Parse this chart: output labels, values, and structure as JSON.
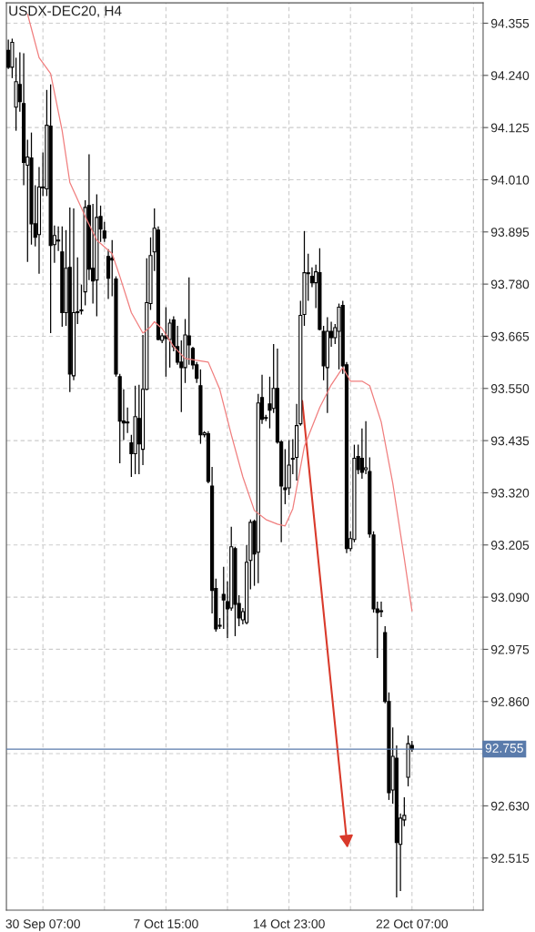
{
  "chart_data": {
    "type": "candlestick",
    "title": "USDX-DEC20, H4",
    "categories": [
      null,
      null,
      null,
      null,
      null,
      null,
      null,
      null,
      null,
      "30 Sep 07:00",
      null,
      null,
      null,
      null,
      null,
      null,
      null,
      null,
      null,
      null,
      null,
      null,
      null,
      null,
      null,
      null,
      null,
      null,
      null,
      null,
      null,
      null,
      null,
      null,
      null,
      null,
      null,
      null,
      null,
      null,
      null,
      "7 Oct 15:00",
      null,
      null,
      null,
      null,
      null,
      null,
      null,
      null,
      null,
      null,
      null,
      null,
      null,
      null,
      null,
      null,
      null,
      null,
      null,
      null,
      null,
      null,
      null,
      null,
      null,
      null,
      null,
      null,
      null,
      null,
      null,
      "14 Oct 23:00",
      null,
      null,
      null,
      null,
      null,
      null,
      null,
      null,
      null,
      null,
      null,
      null,
      null,
      null,
      null,
      null,
      null,
      null,
      null,
      null,
      null,
      null,
      null,
      null,
      null,
      null,
      null,
      null,
      null,
      null,
      null,
      "22 Oct 07:00",
      null,
      null,
      null,
      null,
      null,
      null,
      null,
      null,
      null,
      null,
      null,
      null,
      null,
      null,
      null,
      null,
      null,
      null
    ],
    "ohlc": [
      [
        94.295,
        94.319,
        94.254,
        94.258
      ],
      [
        94.258,
        94.321,
        94.234,
        94.313
      ],
      [
        94.17,
        94.279,
        94.118,
        94.226
      ],
      [
        94.22,
        94.291,
        94.16,
        94.182
      ],
      [
        94.178,
        94.289,
        93.998,
        94.048
      ],
      [
        94.042,
        94.098,
        93.829,
        94.06
      ],
      [
        94.058,
        94.114,
        93.867,
        93.913
      ],
      [
        93.913,
        93.998,
        93.863,
        93.883
      ],
      [
        93.889,
        94.038,
        93.803,
        93.994
      ],
      [
        93.992,
        94.07,
        93.974,
        93.994
      ],
      [
        93.99,
        94.208,
        93.974,
        94.13
      ],
      [
        94.128,
        94.22,
        93.672,
        93.865
      ],
      [
        93.867,
        93.909,
        93.827,
        93.887
      ],
      [
        93.877,
        93.907,
        93.853,
        93.875
      ],
      [
        93.851,
        93.907,
        93.686,
        93.717
      ],
      [
        93.717,
        93.899,
        93.688,
        93.815
      ],
      [
        93.817,
        93.949,
        93.542,
        93.582
      ],
      [
        93.578,
        93.947,
        93.568,
        93.717
      ],
      [
        93.717,
        93.839,
        93.692,
        93.719
      ],
      [
        93.723,
        93.779,
        93.713,
        93.721
      ],
      [
        93.763,
        93.965,
        93.733,
        93.949
      ],
      [
        93.953,
        94.066,
        93.789,
        93.813
      ],
      [
        93.815,
        93.957,
        93.737,
        93.787
      ],
      [
        93.789,
        93.978,
        93.709,
        93.927
      ],
      [
        93.929,
        93.953,
        93.873,
        93.901
      ],
      [
        93.897,
        93.917,
        93.873,
        93.881
      ],
      [
        93.841,
        93.857,
        93.747,
        93.793
      ],
      [
        93.837,
        93.877,
        93.753,
        93.833
      ],
      [
        93.791,
        93.797,
        93.576,
        93.582
      ],
      [
        93.576,
        93.582,
        93.385,
        93.478
      ],
      [
        93.478,
        93.548,
        93.436,
        93.474
      ],
      [
        93.476,
        93.508,
        93.452,
        93.474
      ],
      [
        93.43,
        93.448,
        93.355,
        93.406
      ],
      [
        93.406,
        93.556,
        93.361,
        93.488
      ],
      [
        93.484,
        93.558,
        93.361,
        93.428
      ],
      [
        93.416,
        93.668,
        93.381,
        93.548
      ],
      [
        93.548,
        93.837,
        93.546,
        93.739
      ],
      [
        93.737,
        93.883,
        93.723,
        93.843
      ],
      [
        93.851,
        93.947,
        93.809,
        93.903
      ],
      [
        93.899,
        93.907,
        93.656,
        93.658
      ],
      [
        93.656,
        93.672,
        93.65,
        93.666
      ],
      [
        93.666,
        93.729,
        93.576,
        93.66
      ],
      [
        93.658,
        93.703,
        93.596,
        93.694
      ],
      [
        93.701,
        93.709,
        93.632,
        93.642
      ],
      [
        93.642,
        93.688,
        93.602,
        93.608
      ],
      [
        93.608,
        93.656,
        93.498,
        93.596
      ],
      [
        93.596,
        93.703,
        93.562,
        93.668
      ],
      [
        93.666,
        93.795,
        93.602,
        93.646
      ],
      [
        93.638,
        93.642,
        93.592,
        93.602
      ],
      [
        93.602,
        93.608,
        93.562,
        93.572
      ],
      [
        93.556,
        93.592,
        93.428,
        93.448
      ],
      [
        93.448,
        93.456,
        93.442,
        93.452
      ],
      [
        93.45,
        93.456,
        93.341,
        93.345
      ],
      [
        93.335,
        93.377,
        93.054,
        93.105
      ],
      [
        93.109,
        93.131,
        93.014,
        93.02
      ],
      [
        93.028,
        93.044,
        93.02,
        93.026
      ],
      [
        93.096,
        93.157,
        93.02,
        93.084
      ],
      [
        93.08,
        93.125,
        93.0,
        93.064
      ],
      [
        93.066,
        93.245,
        93.06,
        93.201
      ],
      [
        93.197,
        93.201,
        93.004,
        93.074
      ],
      [
        93.076,
        93.094,
        93.026,
        93.044
      ],
      [
        93.04,
        93.066,
        93.03,
        93.058
      ],
      [
        93.034,
        93.205,
        93.03,
        93.167
      ],
      [
        93.171,
        93.261,
        93.107,
        93.255
      ],
      [
        93.257,
        93.261,
        93.115,
        93.185
      ],
      [
        93.189,
        93.538,
        93.121,
        93.518
      ],
      [
        93.53,
        93.58,
        93.472,
        93.482
      ],
      [
        93.484,
        93.492,
        93.478,
        93.486
      ],
      [
        93.516,
        93.576,
        93.462,
        93.502
      ],
      [
        93.506,
        93.648,
        93.496,
        93.55
      ],
      [
        93.55,
        93.638,
        93.428,
        93.432
      ],
      [
        93.432,
        93.436,
        93.211,
        93.335
      ],
      [
        93.331,
        93.416,
        93.295,
        93.327
      ],
      [
        93.331,
        93.436,
        93.315,
        93.381
      ],
      [
        93.394,
        93.438,
        93.361,
        93.396
      ],
      [
        93.398,
        93.516,
        93.347,
        93.468
      ],
      [
        93.472,
        93.743,
        93.468,
        93.711
      ],
      [
        93.713,
        93.897,
        93.688,
        93.805
      ],
      [
        93.803,
        93.847,
        93.743,
        93.805
      ],
      [
        93.797,
        93.817,
        93.773,
        93.783
      ],
      [
        93.783,
        93.823,
        93.727,
        93.807
      ],
      [
        93.805,
        93.859,
        93.678,
        93.68
      ],
      [
        93.676,
        93.688,
        93.568,
        93.6
      ],
      [
        93.596,
        93.707,
        93.496,
        93.676
      ],
      [
        93.676,
        93.697,
        93.642,
        93.662
      ],
      [
        93.662,
        93.692,
        93.648,
        93.684
      ],
      [
        93.676,
        93.737,
        93.592,
        93.729
      ],
      [
        93.733,
        93.743,
        93.582,
        93.6
      ],
      [
        93.602,
        93.608,
        93.187,
        93.197
      ],
      [
        93.197,
        93.235,
        93.191,
        93.219
      ],
      [
        93.217,
        93.426,
        93.211,
        93.396
      ],
      [
        93.4,
        93.426,
        93.361,
        93.371
      ],
      [
        93.396,
        93.462,
        93.351,
        93.365
      ],
      [
        93.371,
        93.478,
        93.361,
        93.375
      ],
      [
        93.367,
        93.398,
        93.221,
        93.229
      ],
      [
        93.227,
        93.235,
        93.056,
        93.064
      ],
      [
        93.064,
        93.08,
        92.956,
        93.056
      ],
      [
        93.06,
        93.08,
        93.046,
        93.058
      ],
      [
        93.012,
        93.026,
        92.856,
        92.86
      ],
      [
        92.86,
        92.88,
        92.643,
        92.659
      ],
      [
        92.665,
        92.803,
        92.635,
        92.739
      ],
      [
        92.735,
        92.763,
        92.428,
        92.549
      ],
      [
        92.545,
        92.613,
        92.442,
        92.603
      ],
      [
        92.599,
        92.649,
        92.585,
        92.609
      ],
      [
        92.693,
        92.785,
        92.673,
        92.767
      ],
      [
        92.763,
        92.773,
        92.749,
        92.755
      ],
      null,
      null,
      null,
      null,
      null,
      null,
      null,
      null,
      null,
      null,
      null,
      null,
      null,
      null,
      null,
      null,
      null,
      null
    ],
    "series": [
      {
        "type": "line",
        "color": "#f07e7e",
        "values": [
          null,
          null,
          null,
          null,
          null,
          94.375,
          null,
          null,
          94.279,
          null,
          null,
          94.244,
          null,
          null,
          94.118,
          null,
          94.004,
          null,
          null,
          null,
          93.929,
          null,
          null,
          93.877,
          null,
          null,
          null,
          93.847,
          null,
          93.797,
          null,
          null,
          93.717,
          null,
          null,
          93.672,
          null,
          93.686,
          93.697,
          null,
          93.682,
          null,
          null,
          93.642,
          null,
          null,
          93.616,
          null,
          null,
          93.612,
          null,
          null,
          93.608,
          null,
          null,
          93.548,
          null,
          null,
          93.448,
          null,
          null,
          93.355,
          null,
          null,
          93.281,
          null,
          null,
          93.261,
          null,
          null,
          93.251,
          null,
          93.247,
          null,
          93.285,
          null,
          null,
          93.422,
          null,
          null,
          null,
          93.508,
          null,
          null,
          93.558,
          null,
          null,
          93.596,
          null,
          93.566,
          null,
          null,
          93.566,
          null,
          93.556,
          null,
          null,
          93.476,
          null,
          null,
          93.341,
          null,
          null,
          93.175,
          null,
          93.06,
          null,
          null,
          null,
          null,
          null,
          null,
          null,
          null,
          null,
          null,
          null,
          null,
          null,
          null,
          null,
          null,
          null,
          null
        ]
      }
    ],
    "ylim": [
      92.4,
      94.4
    ],
    "yticks": [
      92.515,
      {
        "value": 92.63,
        "label": "92.630"
      },
      {
        "value": 92.745,
        "label": null
      },
      {
        "value": 92.86,
        "label": "92.860"
      },
      92.975,
      {
        "value": 93.09,
        "label": "93.090"
      },
      93.205,
      {
        "value": 93.32,
        "label": "93.320"
      },
      93.435,
      {
        "value": 93.55,
        "label": "93.550"
      },
      93.665,
      {
        "value": 93.78,
        "label": "93.780"
      },
      93.895,
      {
        "value": 94.01,
        "label": "94.010"
      },
      94.125,
      {
        "value": 94.24,
        "label": "94.240"
      },
      94.355
    ],
    "ref_lines": [
      {
        "axis": "y",
        "value": 92.755,
        "label": "92.755",
        "color": "#5a7bab"
      }
    ],
    "grid": true,
    "line_style": "solid"
  }
}
